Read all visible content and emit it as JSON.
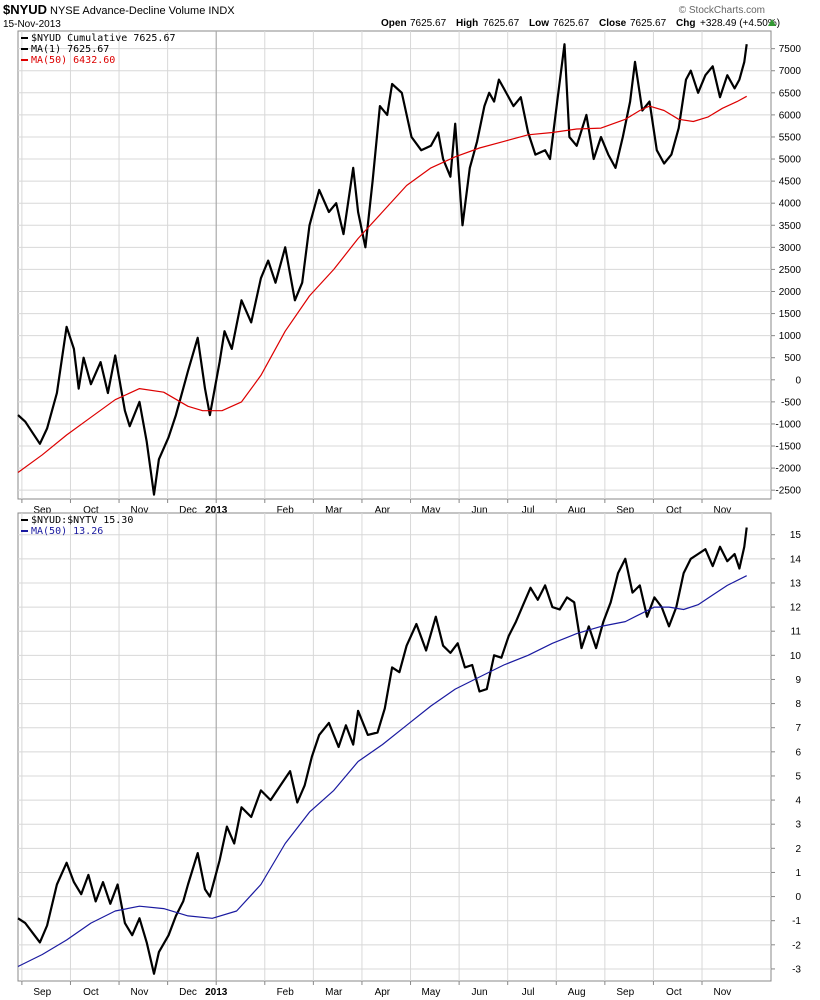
{
  "header": {
    "symbol": "$NYUD",
    "name": "NYSE Advance-Decline Volume INDX",
    "date": "15-Nov-2013",
    "watermark": "© StockCharts.com",
    "open_label": "Open",
    "open_value": "7625.67",
    "high_label": "High",
    "high_value": "7625.67",
    "low_label": "Low",
    "low_value": "7625.67",
    "close_label": "Close",
    "close_value": "7625.67",
    "chg_label": "Chg",
    "chg_value": "+328.49 (+4.50%)",
    "up_arrow": "up-triangle-icon"
  },
  "colors": {
    "price": "#000000",
    "ma_red": "#dd0000",
    "ma_blue": "#1a1aa0",
    "grid": "#d8d8d8",
    "frame": "#888888",
    "arrow": "#339933"
  },
  "x_labels": [
    "Sep",
    "Oct",
    "Nov",
    "Dec",
    "2013",
    "Feb",
    "Mar",
    "Apr",
    "May",
    "Jun",
    "Jul",
    "Aug",
    "Sep",
    "Oct",
    "Nov"
  ],
  "chart_data": [
    {
      "type": "line",
      "panel": "top",
      "legend": [
        {
          "text": "$NYUD  Cumulative 7625.67",
          "color": "#000000"
        },
        {
          "text": "MA(1) 7625.67",
          "color": "#000000"
        },
        {
          "text": "MA(50) 6432.60",
          "color": "#dd0000"
        }
      ],
      "ylim": [
        -2700,
        7900
      ],
      "yticks": [
        7500,
        7000,
        6500,
        6000,
        5500,
        5000,
        4500,
        4000,
        3500,
        3000,
        2500,
        2000,
        1500,
        1000,
        500,
        0,
        -500,
        -1000,
        -1500,
        -2000,
        -2500
      ],
      "ytick_labels": [
        "7500",
        "7000",
        "6500",
        "6000",
        "5500",
        "5000",
        "4500",
        "4000",
        "3500",
        "3000",
        "2500",
        "2000",
        "1500",
        "1000",
        "500",
        "0",
        "-500",
        "-1000",
        "-1500",
        "-2000",
        "-2500"
      ],
      "x_range": [
        0,
        15.5
      ],
      "series": [
        {
          "role": "price",
          "x": [
            0,
            0.15,
            0.3,
            0.45,
            0.6,
            0.8,
            1.0,
            1.15,
            1.25,
            1.35,
            1.5,
            1.7,
            1.85,
            2.0,
            2.2,
            2.3,
            2.5,
            2.65,
            2.8,
            2.9,
            3.1,
            3.25,
            3.4,
            3.5,
            3.7,
            3.85,
            3.95,
            4.15,
            4.25,
            4.4,
            4.6,
            4.8,
            5.0,
            5.15,
            5.3,
            5.5,
            5.7,
            5.85,
            6.0,
            6.2,
            6.4,
            6.55,
            6.7,
            6.9,
            7.0,
            7.15,
            7.3,
            7.45,
            7.6,
            7.7,
            7.9,
            8.1,
            8.3,
            8.5,
            8.65,
            8.75,
            8.9,
            9.0,
            9.15,
            9.3,
            9.45,
            9.6,
            9.7,
            9.8,
            9.9,
            10.0,
            10.2,
            10.35,
            10.5,
            10.65,
            10.85,
            10.95,
            11.1,
            11.25,
            11.35,
            11.5,
            11.7,
            11.85,
            12.0,
            12.15,
            12.3,
            12.45,
            12.6,
            12.7,
            12.85,
            13.0,
            13.15,
            13.3,
            13.45,
            13.6,
            13.75,
            13.85,
            14.0,
            14.15,
            14.3,
            14.45,
            14.6,
            14.75,
            14.85,
            14.95,
            15.0
          ],
          "y": [
            -800,
            -950,
            -1200,
            -1450,
            -1100,
            -300,
            1200,
            700,
            -200,
            500,
            -100,
            400,
            -300,
            550,
            -700,
            -1050,
            -500,
            -1400,
            -2600,
            -1800,
            -1300,
            -800,
            -200,
            200,
            950,
            -200,
            -800,
            400,
            1100,
            700,
            1800,
            1300,
            2300,
            2700,
            2200,
            3000,
            1800,
            2200,
            3500,
            4300,
            3800,
            4000,
            3300,
            4800,
            3800,
            3000,
            4500,
            6200,
            6000,
            6700,
            6500,
            5500,
            5200,
            5300,
            5600,
            5000,
            4600,
            5800,
            3500,
            4800,
            5400,
            6200,
            6500,
            6300,
            6800,
            6600,
            6200,
            6400,
            5600,
            5100,
            5200,
            5000,
            6300,
            7600,
            5500,
            5300,
            6000,
            5000,
            5500,
            5100,
            4800,
            5500,
            6300,
            7200,
            6100,
            6300,
            5200,
            4900,
            5100,
            5700,
            6800,
            7000,
            6500,
            6900,
            7100,
            6400,
            6900,
            6600,
            6800,
            7200,
            7600
          ]
        },
        {
          "role": "ma50",
          "x": [
            0,
            0.5,
            1,
            1.5,
            2,
            2.5,
            3,
            3.5,
            3.8,
            4.2,
            4.6,
            5,
            5.5,
            6,
            6.5,
            7,
            7.5,
            8,
            8.5,
            9,
            9.5,
            10,
            10.5,
            11,
            11.5,
            12,
            12.5,
            12.8,
            13,
            13.3,
            13.6,
            13.9,
            14.2,
            14.5,
            14.8,
            15
          ],
          "y": [
            -2100,
            -1700,
            -1250,
            -850,
            -450,
            -200,
            -280,
            -600,
            -700,
            -700,
            -500,
            100,
            1100,
            1900,
            2500,
            3200,
            3800,
            4400,
            4800,
            5050,
            5250,
            5400,
            5550,
            5600,
            5680,
            5700,
            5900,
            6100,
            6200,
            6100,
            5900,
            5850,
            5950,
            6150,
            6300,
            6420
          ]
        }
      ]
    },
    {
      "type": "line",
      "panel": "bottom",
      "legend": [
        {
          "text": "$NYUD:$NYTV  15.30",
          "color": "#000000"
        },
        {
          "text": "MA(50) 13.26",
          "color": "#1a1aa0"
        }
      ],
      "ylim": [
        -3.5,
        15.9
      ],
      "yticks": [
        15,
        14,
        13,
        12,
        11,
        10,
        9,
        8,
        7,
        6,
        5,
        4,
        3,
        2,
        1,
        0,
        -1,
        -2,
        -3
      ],
      "ytick_labels": [
        "15",
        "14",
        "13",
        "12",
        "11",
        "10",
        "9",
        "8",
        "7",
        "6",
        "5",
        "4",
        "3",
        "2",
        "1",
        "0",
        "-1",
        "-2",
        "-3"
      ],
      "x_range": [
        0,
        15.5
      ],
      "series": [
        {
          "role": "ratio",
          "x": [
            0,
            0.15,
            0.3,
            0.45,
            0.6,
            0.8,
            1.0,
            1.15,
            1.3,
            1.45,
            1.6,
            1.75,
            1.9,
            2.05,
            2.2,
            2.35,
            2.5,
            2.65,
            2.8,
            2.9,
            3.1,
            3.25,
            3.4,
            3.5,
            3.7,
            3.85,
            3.95,
            4.15,
            4.3,
            4.45,
            4.6,
            4.8,
            5.0,
            5.2,
            5.4,
            5.6,
            5.75,
            5.9,
            6.05,
            6.2,
            6.4,
            6.6,
            6.75,
            6.9,
            7.0,
            7.2,
            7.4,
            7.55,
            7.7,
            7.85,
            8.0,
            8.2,
            8.4,
            8.6,
            8.75,
            8.9,
            9.05,
            9.2,
            9.35,
            9.5,
            9.65,
            9.8,
            9.95,
            10.1,
            10.25,
            10.4,
            10.55,
            10.7,
            10.85,
            11.0,
            11.15,
            11.3,
            11.45,
            11.6,
            11.75,
            11.9,
            12.05,
            12.2,
            12.35,
            12.5,
            12.65,
            12.8,
            12.95,
            13.1,
            13.25,
            13.4,
            13.55,
            13.7,
            13.85,
            14.0,
            14.15,
            14.3,
            14.45,
            14.6,
            14.75,
            14.85,
            14.95,
            15.0
          ],
          "y": [
            -0.9,
            -1.1,
            -1.5,
            -1.9,
            -1.2,
            0.5,
            1.4,
            0.6,
            0.1,
            0.9,
            -0.2,
            0.6,
            -0.3,
            0.5,
            -1.1,
            -1.6,
            -0.9,
            -1.9,
            -3.2,
            -2.3,
            -1.6,
            -0.8,
            -0.2,
            0.5,
            1.8,
            0.3,
            0.0,
            1.5,
            2.9,
            2.2,
            3.7,
            3.3,
            4.4,
            4.0,
            4.6,
            5.2,
            3.9,
            4.6,
            5.8,
            6.7,
            7.2,
            6.2,
            7.1,
            6.3,
            7.7,
            6.7,
            6.8,
            7.8,
            9.5,
            9.3,
            10.4,
            11.3,
            10.2,
            11.6,
            10.4,
            10.1,
            10.5,
            9.5,
            9.6,
            8.5,
            8.6,
            10.0,
            9.9,
            10.8,
            11.4,
            12.1,
            12.8,
            12.3,
            12.9,
            12.0,
            11.9,
            12.4,
            12.2,
            10.3,
            11.2,
            10.3,
            11.4,
            12.2,
            13.4,
            14.0,
            12.6,
            12.9,
            11.6,
            12.4,
            12.0,
            11.2,
            12.0,
            13.4,
            14.0,
            14.2,
            14.4,
            13.7,
            14.5,
            13.9,
            14.2,
            13.6,
            14.5,
            15.3
          ]
        },
        {
          "role": "ma50",
          "x": [
            0,
            0.5,
            1,
            1.5,
            2,
            2.5,
            3,
            3.5,
            4,
            4.5,
            5,
            5.5,
            6,
            6.5,
            7,
            7.5,
            8,
            8.5,
            9,
            9.5,
            10,
            10.5,
            11,
            11.5,
            12,
            12.5,
            12.8,
            13.1,
            13.4,
            13.7,
            14.0,
            14.3,
            14.6,
            15
          ],
          "y": [
            -2.9,
            -2.4,
            -1.8,
            -1.1,
            -0.6,
            -0.4,
            -0.5,
            -0.8,
            -0.9,
            -0.6,
            0.5,
            2.2,
            3.5,
            4.4,
            5.6,
            6.3,
            7.1,
            7.9,
            8.6,
            9.1,
            9.6,
            10.0,
            10.5,
            10.9,
            11.2,
            11.4,
            11.7,
            12.0,
            12.0,
            11.9,
            12.1,
            12.5,
            12.9,
            13.3
          ]
        }
      ]
    }
  ]
}
